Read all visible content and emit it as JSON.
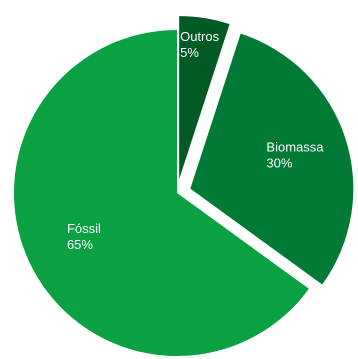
{
  "chart_data": {
    "type": "pie",
    "slices": [
      {
        "name": "Outros",
        "value": 5,
        "label": "5%",
        "color": "#005a23",
        "exploded": true
      },
      {
        "name": "Biomassa",
        "value": 30,
        "label": "30%",
        "color": "#007a34",
        "exploded": true
      },
      {
        "name": "Fóssil",
        "value": 65,
        "label": "65%",
        "color": "#0aa143",
        "exploded": false
      }
    ],
    "legend": "none"
  }
}
